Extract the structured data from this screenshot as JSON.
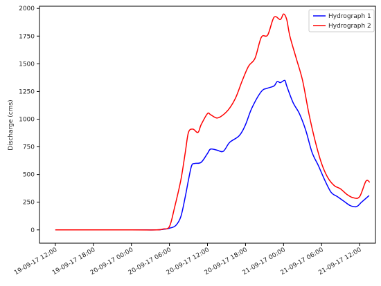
{
  "chart_data": {
    "type": "line",
    "title": "",
    "xlabel": "",
    "ylabel": "Discharge (cms)",
    "x_ticks": [
      {
        "t": 0,
        "label": "19-09-17 12:00"
      },
      {
        "t": 6,
        "label": "19-09-17 18:00"
      },
      {
        "t": 12,
        "label": "20-09-17 00:00"
      },
      {
        "t": 18,
        "label": "20-09-17 06:00"
      },
      {
        "t": 24,
        "label": "20-09-17 12:00"
      },
      {
        "t": 30,
        "label": "20-09-17 18:00"
      },
      {
        "t": 36,
        "label": "21-09-17 00:00"
      },
      {
        "t": 42,
        "label": "21-09-17 06:00"
      },
      {
        "t": 48,
        "label": "21-09-17 12:00"
      }
    ],
    "y_ticks": [
      0,
      250,
      500,
      750,
      1000,
      1250,
      1500,
      1750,
      2000
    ],
    "y_tick_labels": [
      "0",
      "250",
      "500",
      "750",
      "1000",
      "1250",
      "1500",
      "1750",
      "2000"
    ],
    "xlim": [
      -2.5,
      50.5
    ],
    "ylim": [
      -120,
      2020
    ],
    "grid": false,
    "legend_position": "top-right",
    "series": [
      {
        "name": "Hydrograph 1",
        "color": "#0000ff",
        "points": [
          [
            0,
            0
          ],
          [
            12,
            0
          ],
          [
            16,
            0
          ],
          [
            17,
            5
          ],
          [
            18,
            15
          ],
          [
            19,
            40
          ],
          [
            19.8,
            120
          ],
          [
            20.5,
            300
          ],
          [
            21,
            450
          ],
          [
            21.5,
            580
          ],
          [
            22,
            600
          ],
          [
            23,
            610
          ],
          [
            24,
            690
          ],
          [
            24.5,
            730
          ],
          [
            25.5,
            720
          ],
          [
            26.5,
            710
          ],
          [
            27.5,
            790
          ],
          [
            29,
            850
          ],
          [
            30,
            950
          ],
          [
            31,
            1100
          ],
          [
            32.5,
            1250
          ],
          [
            33.5,
            1280
          ],
          [
            34.5,
            1300
          ],
          [
            35,
            1340
          ],
          [
            35.5,
            1330
          ],
          [
            36.2,
            1350
          ],
          [
            36.5,
            1300
          ],
          [
            37.5,
            1150
          ],
          [
            38.5,
            1050
          ],
          [
            39.5,
            900
          ],
          [
            40.5,
            700
          ],
          [
            41.5,
            580
          ],
          [
            42.5,
            450
          ],
          [
            43.5,
            340
          ],
          [
            44.5,
            300
          ],
          [
            45.5,
            260
          ],
          [
            46.5,
            220
          ],
          [
            47.5,
            210
          ],
          [
            48.3,
            250
          ],
          [
            49.5,
            310
          ]
        ]
      },
      {
        "name": "Hydrograph 2",
        "color": "#ff0000",
        "points": [
          [
            0,
            0
          ],
          [
            12,
            0
          ],
          [
            16,
            0
          ],
          [
            17,
            8
          ],
          [
            18,
            30
          ],
          [
            18.8,
            200
          ],
          [
            19.8,
            450
          ],
          [
            20.5,
            700
          ],
          [
            21,
            880
          ],
          [
            21.7,
            910
          ],
          [
            22.5,
            880
          ],
          [
            23,
            950
          ],
          [
            24,
            1050
          ],
          [
            24.5,
            1040
          ],
          [
            25.5,
            1010
          ],
          [
            26.5,
            1040
          ],
          [
            27.5,
            1100
          ],
          [
            28.5,
            1200
          ],
          [
            29.5,
            1350
          ],
          [
            30.5,
            1480
          ],
          [
            31.5,
            1550
          ],
          [
            32.5,
            1740
          ],
          [
            33.5,
            1760
          ],
          [
            34.5,
            1920
          ],
          [
            35.5,
            1900
          ],
          [
            36,
            1950
          ],
          [
            36.5,
            1900
          ],
          [
            37,
            1750
          ],
          [
            38,
            1550
          ],
          [
            39,
            1350
          ],
          [
            40,
            1050
          ],
          [
            41,
            800
          ],
          [
            42,
            600
          ],
          [
            43,
            470
          ],
          [
            44,
            400
          ],
          [
            45,
            370
          ],
          [
            46,
            320
          ],
          [
            47,
            290
          ],
          [
            48,
            300
          ],
          [
            49,
            440
          ],
          [
            49.6,
            430
          ]
        ]
      }
    ]
  }
}
